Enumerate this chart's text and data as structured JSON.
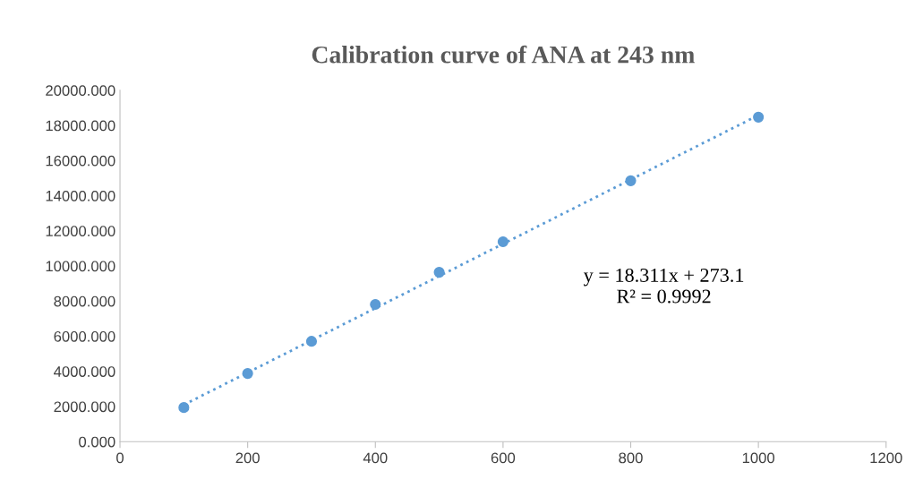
{
  "chart_data": {
    "type": "scatter",
    "title": "Calibration curve of ANA at 243 nm",
    "series": [
      {
        "color": "#5b9bd5",
        "marker": "circle",
        "x": [
          100,
          200,
          300,
          400,
          500,
          600,
          800,
          1000
        ],
        "values": [
          1940,
          3880,
          5710,
          7810,
          9640,
          11380,
          14850,
          18470
        ]
      },
      {
        "type": "line",
        "color": "#5b9bd5",
        "line_style": "dotted",
        "marker": "none",
        "x": [
          100,
          1000
        ],
        "values": [
          2100,
          18580
        ]
      }
    ],
    "xlim": [
      0,
      1200
    ],
    "xticks": [
      0,
      200,
      400,
      600,
      800,
      1000,
      1200
    ],
    "ylim": [
      0,
      20000
    ],
    "yticks": [
      {
        "value": 0,
        "label": "0.000"
      },
      {
        "value": 2000,
        "label": "2000.000"
      },
      {
        "value": 4000,
        "label": "4000.000"
      },
      {
        "value": 6000,
        "label": "6000.000"
      },
      {
        "value": 8000,
        "label": "8000.000"
      },
      {
        "value": 10000,
        "label": "10000.000"
      },
      {
        "value": 12000,
        "label": "12000.000"
      },
      {
        "value": 14000,
        "label": "14000.000"
      },
      {
        "value": 16000,
        "label": "16000.000"
      },
      {
        "value": 18000,
        "label": "18000.000"
      },
      {
        "value": 20000,
        "label": "20000.000"
      }
    ],
    "annotations": [
      "y = 18.311x + 273.1",
      "R² = 0.9992"
    ],
    "grid": false,
    "legend": false
  }
}
